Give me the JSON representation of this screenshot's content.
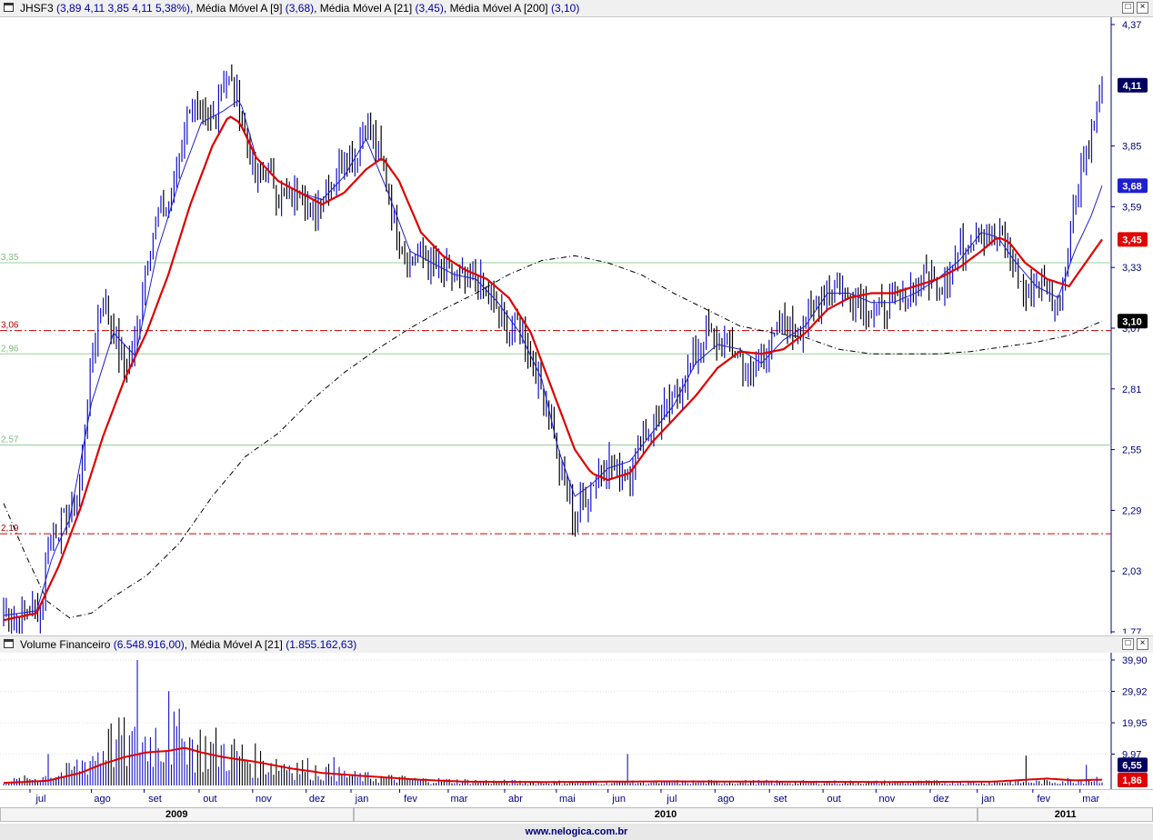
{
  "price_header": {
    "ticker": "JHSF3",
    "ohlc": "(3,89  4,11  3,85  4,11  5,38%)",
    "ma9_label": "Média Móvel A [9]",
    "ma9_value": "(3,68)",
    "ma21_label": "Média Móvel A [21]",
    "ma21_value": "(3,45)",
    "ma200_label": "Média Móvel A [200]",
    "ma200_value": "(3,10)"
  },
  "volume_header": {
    "label": "Volume Financeiro",
    "value": "(6.548.916,00)",
    "ma_label": "Média Móvel A [21]",
    "ma_value": "(1.855.162,63)"
  },
  "window_buttons": {
    "restore": "□",
    "close": "×"
  },
  "footer": {
    "url": "www.nelogica.com.br"
  },
  "colors": {
    "up_bar": "#1010c8",
    "down_bar": "#000000",
    "ma9": "#1f1fd0",
    "ma21": "#e00000",
    "ma200": "#000000",
    "support_line": "#cc0000",
    "fib_line": "#9ad09a",
    "axis_text": "#000080"
  },
  "chart_data": [
    {
      "type": "line",
      "panel": "price",
      "title": "",
      "ylim": [
        1.77,
        4.37
      ],
      "y_ticks": [
        "4,37",
        "3,85",
        "3,59",
        "3,33",
        "3,07",
        "2,81",
        "2,55",
        "2,29",
        "2,03",
        "1,77"
      ],
      "y_tick_values": [
        4.37,
        3.85,
        3.59,
        3.33,
        3.07,
        2.81,
        2.55,
        2.29,
        2.03,
        1.77
      ],
      "x_month_labels": [
        "jul",
        "ago",
        "set",
        "out",
        "nov",
        "dez",
        "jan",
        "fev",
        "mar",
        "abr",
        "mai",
        "jun",
        "jul",
        "ago",
        "set",
        "out",
        "nov",
        "dez",
        "jan",
        "fev",
        "mar"
      ],
      "x_month_fraction": [
        0.0368,
        0.0921,
        0.1395,
        0.189,
        0.2372,
        0.2854,
        0.3257,
        0.3695,
        0.4132,
        0.464,
        0.5105,
        0.557,
        0.6047,
        0.6533,
        0.7023,
        0.7505,
        0.7982,
        0.847,
        0.8893,
        0.9393,
        0.9818
      ],
      "years": [
        "2009",
        "2010",
        "2011"
      ],
      "year_breaks_fraction": [
        0,
        0.318,
        0.88,
        1.0
      ],
      "last_price_label": "4,11",
      "last_ma9_label": "3,68",
      "last_ma21_label": "3,45",
      "last_ma200_label": "3,10",
      "horizontal_levels": [
        {
          "label": "3,35",
          "value": 3.35,
          "style": "fib"
        },
        {
          "label": "3,06",
          "value": 3.06,
          "style": "support"
        },
        {
          "label": "2,96",
          "value": 2.96,
          "style": "fib"
        },
        {
          "label": "2,57",
          "value": 2.57,
          "style": "fib"
        },
        {
          "label": "2,19",
          "value": 2.19,
          "style": "support"
        }
      ],
      "price_keypoints": [
        [
          0.0,
          1.85
        ],
        [
          0.012,
          1.82
        ],
        [
          0.025,
          1.88
        ],
        [
          0.035,
          1.87
        ],
        [
          0.04,
          2.15
        ],
        [
          0.05,
          2.22
        ],
        [
          0.06,
          2.28
        ],
        [
          0.07,
          2.4
        ],
        [
          0.08,
          2.95
        ],
        [
          0.09,
          3.2
        ],
        [
          0.1,
          3.05
        ],
        [
          0.11,
          2.9
        ],
        [
          0.12,
          3.0
        ],
        [
          0.13,
          3.35
        ],
        [
          0.14,
          3.55
        ],
        [
          0.15,
          3.6
        ],
        [
          0.16,
          3.8
        ],
        [
          0.17,
          4.05
        ],
        [
          0.18,
          3.95
        ],
        [
          0.19,
          3.95
        ],
        [
          0.2,
          4.15
        ],
        [
          0.21,
          4.1
        ],
        [
          0.22,
          3.9
        ],
        [
          0.23,
          3.7
        ],
        [
          0.24,
          3.75
        ],
        [
          0.25,
          3.65
        ],
        [
          0.26,
          3.6
        ],
        [
          0.27,
          3.7
        ],
        [
          0.28,
          3.55
        ],
        [
          0.29,
          3.65
        ],
        [
          0.3,
          3.7
        ],
        [
          0.31,
          3.8
        ],
        [
          0.32,
          3.8
        ],
        [
          0.33,
          3.95
        ],
        [
          0.34,
          3.85
        ],
        [
          0.35,
          3.65
        ],
        [
          0.36,
          3.45
        ],
        [
          0.37,
          3.35
        ],
        [
          0.38,
          3.4
        ],
        [
          0.39,
          3.35
        ],
        [
          0.4,
          3.3
        ],
        [
          0.41,
          3.3
        ],
        [
          0.42,
          3.25
        ],
        [
          0.43,
          3.3
        ],
        [
          0.44,
          3.2
        ],
        [
          0.45,
          3.15
        ],
        [
          0.46,
          3.05
        ],
        [
          0.47,
          3.1
        ],
        [
          0.48,
          2.95
        ],
        [
          0.49,
          2.8
        ],
        [
          0.5,
          2.7
        ],
        [
          0.505,
          2.45
        ],
        [
          0.51,
          2.4
        ],
        [
          0.52,
          2.25
        ],
        [
          0.53,
          2.35
        ],
        [
          0.54,
          2.45
        ],
        [
          0.55,
          2.5
        ],
        [
          0.56,
          2.45
        ],
        [
          0.57,
          2.45
        ],
        [
          0.58,
          2.6
        ],
        [
          0.59,
          2.65
        ],
        [
          0.6,
          2.7
        ],
        [
          0.61,
          2.75
        ],
        [
          0.62,
          2.85
        ],
        [
          0.63,
          2.95
        ],
        [
          0.64,
          3.05
        ],
        [
          0.65,
          3.0
        ],
        [
          0.66,
          3.0
        ],
        [
          0.67,
          2.95
        ],
        [
          0.68,
          2.85
        ],
        [
          0.69,
          2.95
        ],
        [
          0.7,
          3.0
        ],
        [
          0.71,
          3.1
        ],
        [
          0.72,
          3.05
        ],
        [
          0.73,
          3.1
        ],
        [
          0.74,
          3.15
        ],
        [
          0.75,
          3.25
        ],
        [
          0.76,
          3.25
        ],
        [
          0.77,
          3.2
        ],
        [
          0.78,
          3.2
        ],
        [
          0.79,
          3.15
        ],
        [
          0.8,
          3.15
        ],
        [
          0.81,
          3.2
        ],
        [
          0.82,
          3.2
        ],
        [
          0.83,
          3.25
        ],
        [
          0.84,
          3.3
        ],
        [
          0.85,
          3.25
        ],
        [
          0.86,
          3.3
        ],
        [
          0.87,
          3.4
        ],
        [
          0.88,
          3.45
        ],
        [
          0.89,
          3.5
        ],
        [
          0.9,
          3.45
        ],
        [
          0.91,
          3.45
        ],
        [
          0.92,
          3.35
        ],
        [
          0.93,
          3.2
        ],
        [
          0.94,
          3.25
        ],
        [
          0.95,
          3.25
        ],
        [
          0.96,
          3.15
        ],
        [
          0.965,
          3.3
        ],
        [
          0.97,
          3.45
        ],
        [
          0.98,
          3.75
        ],
        [
          0.99,
          3.9
        ],
        [
          1.0,
          4.11
        ]
      ],
      "ma21_keypoints": [
        [
          0.0,
          1.82
        ],
        [
          0.03,
          1.85
        ],
        [
          0.05,
          2.05
        ],
        [
          0.07,
          2.3
        ],
        [
          0.09,
          2.6
        ],
        [
          0.11,
          2.85
        ],
        [
          0.13,
          3.05
        ],
        [
          0.15,
          3.3
        ],
        [
          0.17,
          3.6
        ],
        [
          0.19,
          3.85
        ],
        [
          0.205,
          3.98
        ],
        [
          0.215,
          3.95
        ],
        [
          0.23,
          3.8
        ],
        [
          0.25,
          3.7
        ],
        [
          0.27,
          3.65
        ],
        [
          0.29,
          3.6
        ],
        [
          0.31,
          3.65
        ],
        [
          0.33,
          3.75
        ],
        [
          0.345,
          3.8
        ],
        [
          0.36,
          3.7
        ],
        [
          0.38,
          3.48
        ],
        [
          0.4,
          3.38
        ],
        [
          0.42,
          3.32
        ],
        [
          0.44,
          3.28
        ],
        [
          0.46,
          3.2
        ],
        [
          0.48,
          3.05
        ],
        [
          0.5,
          2.8
        ],
        [
          0.52,
          2.55
        ],
        [
          0.535,
          2.45
        ],
        [
          0.55,
          2.42
        ],
        [
          0.57,
          2.45
        ],
        [
          0.59,
          2.58
        ],
        [
          0.61,
          2.68
        ],
        [
          0.63,
          2.78
        ],
        [
          0.65,
          2.9
        ],
        [
          0.67,
          2.97
        ],
        [
          0.69,
          2.96
        ],
        [
          0.71,
          2.98
        ],
        [
          0.73,
          3.05
        ],
        [
          0.75,
          3.15
        ],
        [
          0.77,
          3.2
        ],
        [
          0.79,
          3.22
        ],
        [
          0.81,
          3.22
        ],
        [
          0.83,
          3.25
        ],
        [
          0.85,
          3.28
        ],
        [
          0.87,
          3.33
        ],
        [
          0.89,
          3.4
        ],
        [
          0.905,
          3.46
        ],
        [
          0.915,
          3.44
        ],
        [
          0.93,
          3.35
        ],
        [
          0.95,
          3.28
        ],
        [
          0.97,
          3.25
        ],
        [
          0.985,
          3.35
        ],
        [
          1.0,
          3.45
        ]
      ],
      "ma9_keypoints": [
        [
          0.0,
          1.84
        ],
        [
          0.03,
          1.86
        ],
        [
          0.045,
          2.1
        ],
        [
          0.06,
          2.25
        ],
        [
          0.08,
          2.75
        ],
        [
          0.1,
          3.05
        ],
        [
          0.12,
          2.95
        ],
        [
          0.14,
          3.4
        ],
        [
          0.16,
          3.7
        ],
        [
          0.18,
          3.95
        ],
        [
          0.2,
          4.0
        ],
        [
          0.215,
          4.05
        ],
        [
          0.23,
          3.8
        ],
        [
          0.25,
          3.7
        ],
        [
          0.27,
          3.65
        ],
        [
          0.29,
          3.62
        ],
        [
          0.31,
          3.72
        ],
        [
          0.33,
          3.88
        ],
        [
          0.35,
          3.65
        ],
        [
          0.37,
          3.4
        ],
        [
          0.39,
          3.35
        ],
        [
          0.41,
          3.3
        ],
        [
          0.43,
          3.28
        ],
        [
          0.45,
          3.18
        ],
        [
          0.47,
          3.05
        ],
        [
          0.49,
          2.85
        ],
        [
          0.505,
          2.55
        ],
        [
          0.52,
          2.35
        ],
        [
          0.535,
          2.4
        ],
        [
          0.55,
          2.47
        ],
        [
          0.57,
          2.5
        ],
        [
          0.59,
          2.62
        ],
        [
          0.61,
          2.74
        ],
        [
          0.63,
          2.92
        ],
        [
          0.65,
          3.0
        ],
        [
          0.67,
          2.98
        ],
        [
          0.69,
          2.92
        ],
        [
          0.71,
          3.02
        ],
        [
          0.73,
          3.08
        ],
        [
          0.75,
          3.22
        ],
        [
          0.77,
          3.22
        ],
        [
          0.79,
          3.18
        ],
        [
          0.81,
          3.18
        ],
        [
          0.83,
          3.22
        ],
        [
          0.85,
          3.28
        ],
        [
          0.87,
          3.36
        ],
        [
          0.89,
          3.48
        ],
        [
          0.905,
          3.46
        ],
        [
          0.92,
          3.36
        ],
        [
          0.94,
          3.25
        ],
        [
          0.96,
          3.2
        ],
        [
          0.975,
          3.4
        ],
        [
          0.99,
          3.55
        ],
        [
          1.0,
          3.68
        ]
      ],
      "ma200_keypoints": [
        [
          0.0,
          2.32
        ],
        [
          0.02,
          2.1
        ],
        [
          0.04,
          1.9
        ],
        [
          0.06,
          1.83
        ],
        [
          0.08,
          1.85
        ],
        [
          0.1,
          1.92
        ],
        [
          0.13,
          2.01
        ],
        [
          0.16,
          2.15
        ],
        [
          0.19,
          2.35
        ],
        [
          0.22,
          2.52
        ],
        [
          0.25,
          2.62
        ],
        [
          0.28,
          2.76
        ],
        [
          0.31,
          2.88
        ],
        [
          0.34,
          2.98
        ],
        [
          0.37,
          3.07
        ],
        [
          0.4,
          3.15
        ],
        [
          0.43,
          3.22
        ],
        [
          0.46,
          3.3
        ],
        [
          0.49,
          3.36
        ],
        [
          0.52,
          3.38
        ],
        [
          0.55,
          3.35
        ],
        [
          0.58,
          3.3
        ],
        [
          0.61,
          3.22
        ],
        [
          0.64,
          3.15
        ],
        [
          0.67,
          3.08
        ],
        [
          0.7,
          3.05
        ],
        [
          0.73,
          3.03
        ],
        [
          0.76,
          2.98
        ],
        [
          0.79,
          2.96
        ],
        [
          0.82,
          2.96
        ],
        [
          0.85,
          2.96
        ],
        [
          0.88,
          2.97
        ],
        [
          0.91,
          2.99
        ],
        [
          0.94,
          3.01
        ],
        [
          0.97,
          3.04
        ],
        [
          1.0,
          3.1
        ]
      ],
      "noise_amplitude": 0.07
    },
    {
      "type": "bar",
      "panel": "volume",
      "title": "",
      "ylim": [
        0,
        39.9
      ],
      "y_ticks": [
        "39,90",
        "29,92",
        "19,95",
        "9,97"
      ],
      "y_tick_values": [
        39.9,
        29.92,
        19.95,
        9.97
      ],
      "last_volume_label": "6,55",
      "last_ma_label": "1,86",
      "volume_keypoints": [
        [
          0.0,
          1.0
        ],
        [
          0.04,
          2.5
        ],
        [
          0.06,
          4.0
        ],
        [
          0.08,
          8.0
        ],
        [
          0.1,
          12.0
        ],
        [
          0.12,
          11.0
        ],
        [
          0.14,
          14.0
        ],
        [
          0.16,
          13.0
        ],
        [
          0.18,
          11.0
        ],
        [
          0.2,
          10.0
        ],
        [
          0.23,
          7.0
        ],
        [
          0.26,
          6.0
        ],
        [
          0.29,
          4.0
        ],
        [
          0.32,
          2.5
        ],
        [
          0.35,
          2.0
        ],
        [
          0.38,
          1.5
        ],
        [
          0.45,
          1.0
        ],
        [
          0.55,
          0.8
        ],
        [
          0.65,
          1.0
        ],
        [
          0.75,
          0.9
        ],
        [
          0.85,
          0.9
        ],
        [
          0.95,
          1.0
        ],
        [
          1.0,
          2.0
        ]
      ],
      "volume_spikes": [
        [
          0.122,
          39.9
        ],
        [
          0.15,
          30.0
        ],
        [
          0.095,
          18.0
        ],
        [
          0.108,
          16.0
        ],
        [
          0.165,
          14.0
        ],
        [
          0.04,
          10.0
        ],
        [
          0.3,
          9.0
        ],
        [
          0.568,
          10.0
        ],
        [
          0.93,
          9.5
        ],
        [
          0.985,
          6.55
        ]
      ],
      "ma_keypoints": [
        [
          0.0,
          0.8
        ],
        [
          0.04,
          1.5
        ],
        [
          0.07,
          4.0
        ],
        [
          0.09,
          6.8
        ],
        [
          0.11,
          9.0
        ],
        [
          0.13,
          10.5
        ],
        [
          0.15,
          11.0
        ],
        [
          0.165,
          12.0
        ],
        [
          0.18,
          10.5
        ],
        [
          0.2,
          9.0
        ],
        [
          0.23,
          7.5
        ],
        [
          0.26,
          5.5
        ],
        [
          0.29,
          4.0
        ],
        [
          0.32,
          3.2
        ],
        [
          0.35,
          2.5
        ],
        [
          0.38,
          1.8
        ],
        [
          0.42,
          1.2
        ],
        [
          0.5,
          1.1
        ],
        [
          0.6,
          1.3
        ],
        [
          0.7,
          1.2
        ],
        [
          0.8,
          1.1
        ],
        [
          0.9,
          1.2
        ],
        [
          0.95,
          2.2
        ],
        [
          0.975,
          1.6
        ],
        [
          1.0,
          1.86
        ]
      ]
    }
  ]
}
